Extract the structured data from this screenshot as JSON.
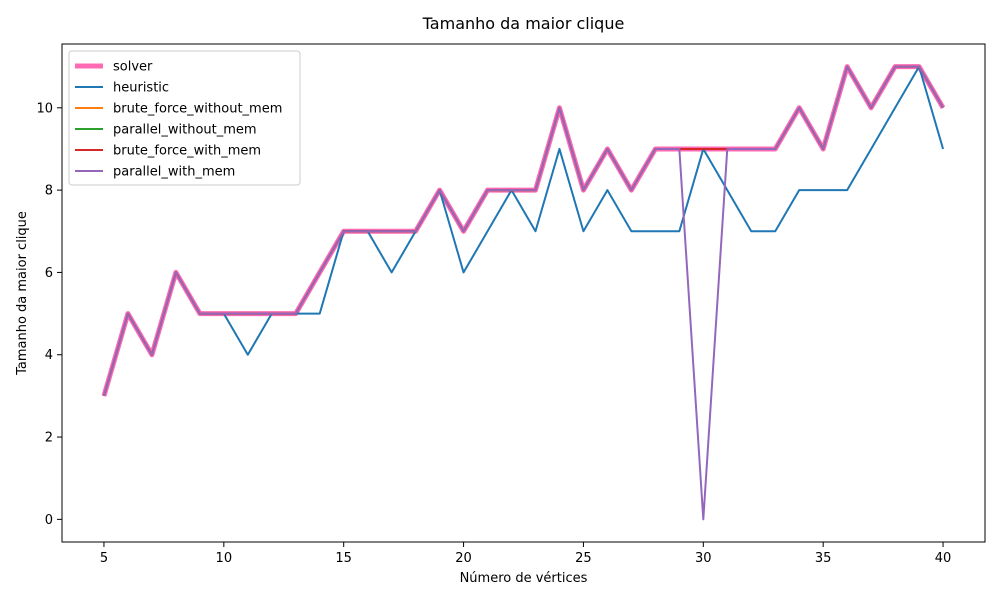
{
  "chart_data": {
    "type": "line",
    "title": "Tamanho da maior clique",
    "xlabel": "Número de vértices",
    "ylabel": "Tamanho da maior clique",
    "xlim": [
      3.25,
      41.75
    ],
    "ylim": [
      -0.55,
      11.55
    ],
    "xticks": [
      5,
      10,
      15,
      20,
      25,
      30,
      35,
      40
    ],
    "yticks": [
      0,
      2,
      4,
      6,
      8,
      10
    ],
    "grid": false,
    "legend_position": "top-left",
    "x": [
      5,
      6,
      7,
      8,
      9,
      10,
      11,
      12,
      13,
      14,
      15,
      16,
      17,
      18,
      19,
      20,
      21,
      22,
      23,
      24,
      25,
      26,
      27,
      28,
      29,
      30,
      31,
      32,
      33,
      34,
      35,
      36,
      37,
      38,
      39,
      40
    ],
    "series": [
      {
        "name": "solver",
        "color": "#ff69b4",
        "width": 5,
        "values": [
          3,
          5,
          4,
          6,
          5,
          5,
          5,
          5,
          5,
          6,
          7,
          7,
          7,
          7,
          8,
          7,
          8,
          8,
          8,
          10,
          8,
          9,
          8,
          9,
          9,
          9,
          9,
          9,
          9,
          10,
          9,
          11,
          10,
          11,
          11,
          10
        ]
      },
      {
        "name": "heuristic",
        "color": "#1f77b4",
        "width": 2,
        "values": [
          3,
          5,
          4,
          6,
          5,
          5,
          4,
          5,
          5,
          5,
          7,
          7,
          6,
          7,
          8,
          6,
          7,
          8,
          7,
          9,
          7,
          8,
          7,
          7,
          7,
          9,
          8,
          7,
          7,
          8,
          8,
          8,
          9,
          10,
          11,
          9
        ]
      },
      {
        "name": "brute_force_without_mem",
        "color": "#ff7f0e",
        "width": 2,
        "values": [
          3,
          5,
          4,
          6,
          5,
          5,
          5,
          5,
          5,
          6,
          7,
          7,
          7,
          7,
          8,
          7,
          8,
          8,
          8,
          10,
          8,
          9,
          8,
          9,
          9,
          9,
          9,
          9,
          9,
          10,
          9,
          11,
          10,
          11,
          11,
          10
        ]
      },
      {
        "name": "parallel_without_mem",
        "color": "#2ca02c",
        "width": 2,
        "values": [
          3,
          5,
          4,
          6,
          5,
          5,
          5,
          5,
          5,
          6,
          7,
          7,
          7,
          7,
          8,
          7,
          8,
          8,
          8,
          10,
          8,
          9,
          8,
          9,
          9,
          9,
          9,
          9,
          9,
          10,
          9,
          11,
          10,
          11,
          11,
          10
        ]
      },
      {
        "name": "brute_force_with_mem",
        "color": "#d62728",
        "width": 2,
        "values": [
          3,
          5,
          4,
          6,
          5,
          5,
          5,
          5,
          5,
          6,
          7,
          7,
          7,
          7,
          8,
          7,
          8,
          8,
          8,
          10,
          8,
          9,
          8,
          9,
          9,
          9,
          9,
          9,
          9,
          10,
          9,
          11,
          10,
          11,
          11,
          10
        ]
      },
      {
        "name": "parallel_with_mem",
        "color": "#9467bd",
        "width": 2,
        "values": [
          3,
          5,
          4,
          6,
          5,
          5,
          5,
          5,
          5,
          6,
          7,
          7,
          7,
          7,
          8,
          7,
          8,
          8,
          8,
          10,
          8,
          9,
          8,
          9,
          9,
          0,
          9,
          9,
          9,
          10,
          9,
          11,
          10,
          11,
          11,
          10
        ]
      }
    ]
  }
}
